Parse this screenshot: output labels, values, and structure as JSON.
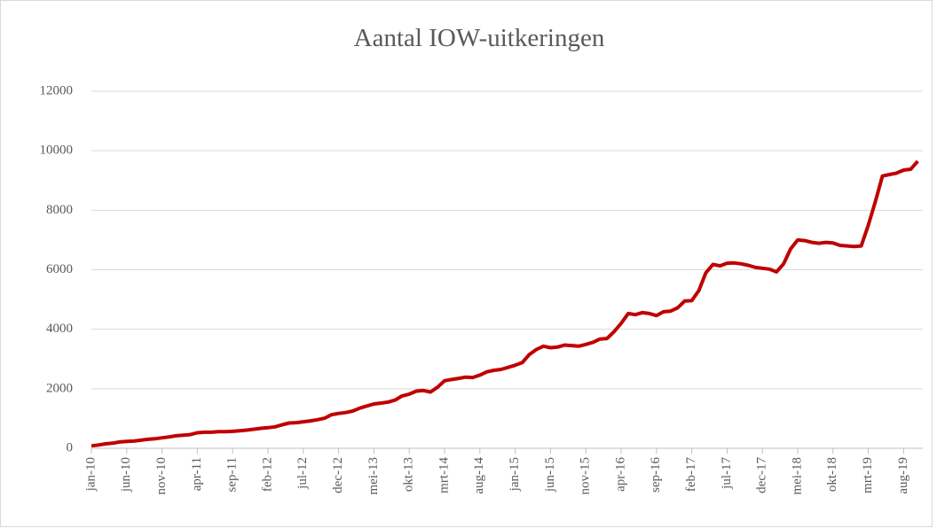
{
  "chart_data": {
    "type": "line",
    "title": "Aantal IOW-uitkeringen",
    "categories": [
      "jan-10",
      null,
      null,
      null,
      null,
      "jun-10",
      null,
      null,
      null,
      null,
      "nov-10",
      null,
      null,
      null,
      null,
      "apr-11",
      null,
      null,
      null,
      null,
      "sep-11",
      null,
      null,
      null,
      null,
      "feb-12",
      null,
      null,
      null,
      null,
      "jul-12",
      null,
      null,
      null,
      null,
      "dec-12",
      null,
      null,
      null,
      null,
      "mei-13",
      null,
      null,
      null,
      null,
      "okt-13",
      null,
      null,
      null,
      null,
      "mrt-14",
      null,
      null,
      null,
      null,
      "aug-14",
      null,
      null,
      null,
      null,
      "jan-15",
      null,
      null,
      null,
      null,
      "jun-15",
      null,
      null,
      null,
      null,
      "nov-15",
      null,
      null,
      null,
      null,
      "apr-16",
      null,
      null,
      null,
      null,
      "sep-16",
      null,
      null,
      null,
      null,
      "feb-17",
      null,
      null,
      null,
      null,
      "jul-17",
      null,
      null,
      null,
      null,
      "dec-17",
      null,
      null,
      null,
      null,
      "mei-18",
      null,
      null,
      null,
      null,
      "okt-18",
      null,
      null,
      null,
      null,
      "mrt-19",
      null,
      null,
      null,
      null,
      "aug-19",
      null,
      null
    ],
    "series": [
      {
        "name": "Aantal IOW-uitkeringen",
        "color": "#c00000",
        "values": [
          80,
          110,
          150,
          170,
          210,
          230,
          240,
          270,
          300,
          320,
          350,
          380,
          420,
          440,
          460,
          520,
          540,
          540,
          560,
          560,
          570,
          590,
          610,
          640,
          670,
          690,
          720,
          790,
          850,
          860,
          890,
          920,
          960,
          1010,
          1130,
          1170,
          1200,
          1250,
          1350,
          1420,
          1490,
          1520,
          1550,
          1620,
          1760,
          1820,
          1920,
          1940,
          1890,
          2050,
          2270,
          2310,
          2350,
          2390,
          2380,
          2460,
          2570,
          2620,
          2650,
          2720,
          2790,
          2880,
          3150,
          3320,
          3430,
          3380,
          3400,
          3470,
          3450,
          3430,
          3490,
          3560,
          3670,
          3690,
          3920,
          4200,
          4530,
          4490,
          4560,
          4530,
          4460,
          4590,
          4610,
          4720,
          4950,
          4960,
          5300,
          5900,
          6180,
          6130,
          6220,
          6230,
          6200,
          6150,
          6080,
          6050,
          6020,
          5930,
          6200,
          6700,
          7000,
          6980,
          6920,
          6890,
          6920,
          6900,
          6820,
          6800,
          6780,
          6800,
          7500,
          8300,
          9150,
          9200,
          9250,
          9350,
          9380,
          9650
        ]
      }
    ],
    "ylim": [
      0,
      12000
    ],
    "yticks": [
      0,
      2000,
      4000,
      6000,
      8000,
      10000,
      12000
    ],
    "grid": true
  }
}
